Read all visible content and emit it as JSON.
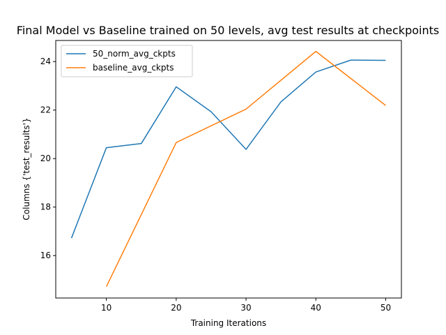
{
  "chart_data": {
    "type": "line",
    "title": "Final Model vs Baseline trained on 50 levels, avg test results at checkpoints",
    "xlabel": "Training Iterations",
    "ylabel": "Columns {'test_results'}",
    "xlim": [
      2.75,
      52.25
    ],
    "ylim": [
      14.25,
      24.87
    ],
    "xticks": [
      10,
      20,
      30,
      40,
      50
    ],
    "yticks": [
      16,
      18,
      20,
      22,
      24
    ],
    "grid": false,
    "legend_position": "upper-left",
    "series": [
      {
        "name": "50_norm_avg_ckpts",
        "color": "#1f77b4",
        "x": [
          5,
          10,
          15,
          20,
          25,
          30,
          35,
          40,
          45,
          50
        ],
        "y": [
          16.72,
          20.45,
          20.62,
          22.96,
          21.93,
          20.38,
          22.34,
          23.57,
          24.06,
          24.05
        ]
      },
      {
        "name": "baseline_avg_ckpts",
        "color": "#ff7f0e",
        "x": [
          10,
          20,
          30,
          40,
          50
        ],
        "y": [
          14.72,
          20.66,
          22.04,
          24.42,
          22.19
        ]
      }
    ]
  }
}
